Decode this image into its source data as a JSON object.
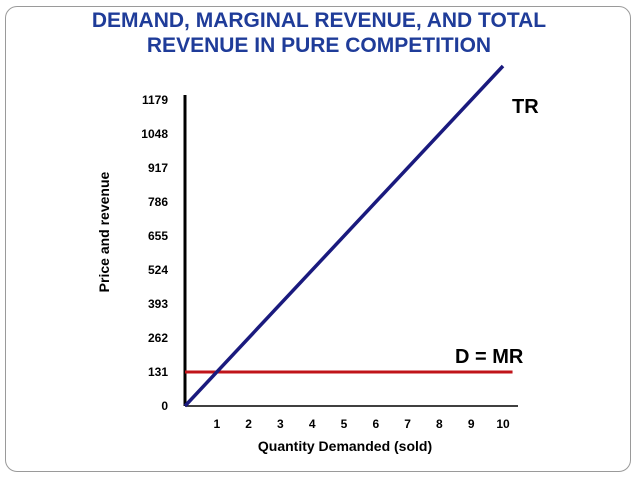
{
  "slide": {
    "title_line1": "DEMAND, MARGINAL REVENUE, AND TOTAL",
    "title_line2": "REVENUE IN PURE COMPETITION"
  },
  "colors": {
    "title": "#1f3c99",
    "tr_line": "#1a1a7e",
    "mr_line": "#c0141a",
    "axis": "#000000"
  },
  "chart_data": {
    "type": "line",
    "title": "DEMAND, MARGINAL REVENUE, AND TOTAL REVENUE IN PURE COMPETITION",
    "xlabel": "Quantity Demanded (sold)",
    "ylabel": "Price and revenue",
    "x_ticks": [
      "1",
      "2",
      "3",
      "4",
      "5",
      "6",
      "7",
      "8",
      "9",
      "10"
    ],
    "y_ticks": [
      "0",
      "131",
      "262",
      "393",
      "524",
      "655",
      "786",
      "917",
      "1048",
      "1179"
    ],
    "xlim": [
      0,
      10
    ],
    "ylim": [
      0,
      1179
    ],
    "series": [
      {
        "name": "TR",
        "label": "TR",
        "x": [
          0,
          10
        ],
        "y": [
          0,
          1310
        ]
      },
      {
        "name": "D = MR",
        "label": "D = MR",
        "x": [
          0,
          10.3
        ],
        "y": [
          131,
          131
        ]
      }
    ]
  }
}
